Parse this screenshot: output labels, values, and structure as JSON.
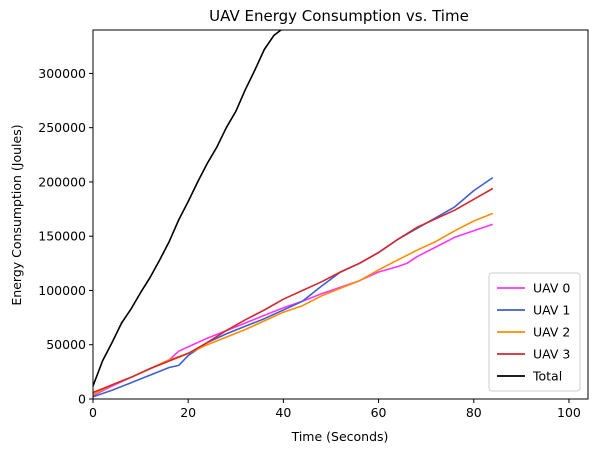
{
  "chart_data": {
    "type": "line",
    "title": "UAV Energy Consumption vs. Time",
    "xlabel": "Time (Seconds)",
    "ylabel": "Energy Consumption (Joules)",
    "xlim": [
      0,
      104
    ],
    "ylim": [
      0,
      340000
    ],
    "xticks": [
      0,
      20,
      40,
      60,
      80,
      100
    ],
    "xtick_labels": [
      "0",
      "20",
      "40",
      "60",
      "80",
      "100"
    ],
    "yticks": [
      0,
      50000,
      100000,
      150000,
      200000,
      250000,
      300000
    ],
    "ytick_labels": [
      "0",
      "50000",
      "100000",
      "150000",
      "200000",
      "250000",
      "300000"
    ],
    "grid": false,
    "legend_position": "bottom-right",
    "series": [
      {
        "name": "UAV 0",
        "color": "#ff33ff",
        "x": [
          0,
          4,
          8,
          12,
          16,
          18,
          20,
          24,
          28,
          32,
          36,
          40,
          44,
          48,
          52,
          56,
          60,
          64,
          66,
          68,
          72,
          76,
          80,
          84
        ],
        "y": [
          3000,
          12000,
          20000,
          28000,
          36000,
          44000,
          48000,
          56000,
          63000,
          70000,
          77000,
          84000,
          90000,
          97000,
          103000,
          109000,
          117000,
          122000,
          125000,
          131000,
          140000,
          149000,
          155000,
          161000
        ]
      },
      {
        "name": "UAV 1",
        "color": "#3d5fd0",
        "x": [
          0,
          4,
          8,
          12,
          16,
          18,
          20,
          24,
          28,
          32,
          36,
          40,
          44,
          48,
          52,
          56,
          60,
          64,
          68,
          72,
          76,
          80,
          84
        ],
        "y": [
          2000,
          8000,
          15000,
          22000,
          29000,
          31000,
          40000,
          52000,
          60000,
          67000,
          74000,
          82000,
          90000,
          104000,
          117000,
          125000,
          135000,
          147000,
          157000,
          167000,
          177000,
          192000,
          204000
        ]
      },
      {
        "name": "UAV 2",
        "color": "#ff8c00",
        "x": [
          0,
          4,
          8,
          12,
          16,
          20,
          24,
          28,
          32,
          36,
          40,
          44,
          48,
          52,
          56,
          60,
          64,
          68,
          72,
          76,
          80,
          84
        ],
        "y": [
          4000,
          13000,
          20000,
          28000,
          36000,
          42000,
          50000,
          57000,
          64000,
          72000,
          80000,
          86000,
          95000,
          102000,
          109000,
          119000,
          128000,
          137000,
          145000,
          155000,
          164000,
          171000
        ]
      },
      {
        "name": "UAV 3",
        "color": "#d6272b",
        "x": [
          0,
          4,
          8,
          12,
          16,
          20,
          24,
          28,
          32,
          36,
          40,
          44,
          48,
          52,
          56,
          60,
          64,
          68,
          72,
          76,
          80,
          84
        ],
        "y": [
          6000,
          13000,
          20000,
          28000,
          35000,
          42000,
          52000,
          63000,
          73000,
          82000,
          92000,
          100000,
          108000,
          117000,
          125000,
          135000,
          147000,
          158000,
          166000,
          174000,
          184000,
          194000
        ]
      },
      {
        "name": "Total",
        "color": "#000000",
        "x": [
          0,
          2,
          4,
          6,
          8,
          10,
          12,
          14,
          16,
          18,
          20,
          22,
          24,
          26,
          28,
          30,
          32,
          34,
          36,
          38,
          39.5
        ],
        "y": [
          12000,
          35000,
          52000,
          70000,
          83000,
          98000,
          112000,
          128000,
          145000,
          165000,
          182000,
          200000,
          217000,
          232000,
          250000,
          265000,
          285000,
          303000,
          322000,
          335000,
          340000
        ]
      }
    ]
  }
}
